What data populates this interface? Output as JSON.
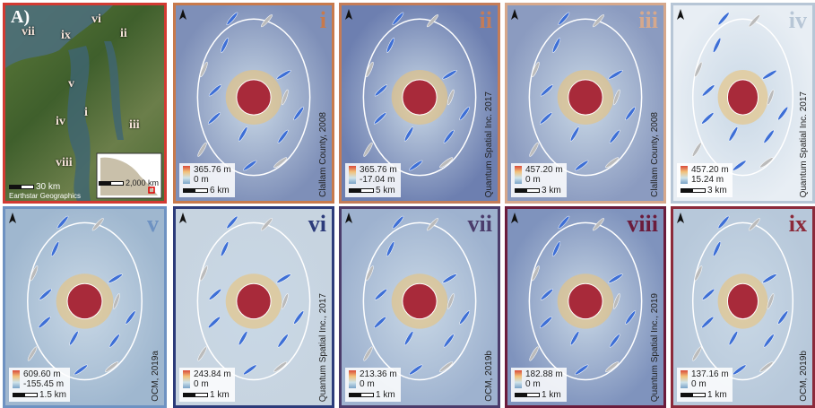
{
  "overview": {
    "label": "A)",
    "site_labels": [
      "vii",
      "ix",
      "vi",
      "ii",
      "v",
      "iv",
      "i",
      "iii",
      "viii"
    ],
    "scale": "30 km",
    "credit": "Earthstar Geographics",
    "inset_scale": "2,000 km"
  },
  "panels": [
    {
      "label": "i",
      "credit": "Clallam County, 2008",
      "legend_max": "365.76 m",
      "legend_min": "0 m",
      "scale": "6 km"
    },
    {
      "label": "ii",
      "credit": "Quantum Spatial Inc. 2017",
      "legend_max": "365.76 m",
      "legend_min": "-17.04 m",
      "scale": "5 km"
    },
    {
      "label": "iii",
      "credit": "Clallam County, 2008",
      "legend_max": "457.20 m",
      "legend_min": "0 m",
      "scale": "3 km"
    },
    {
      "label": "iv",
      "credit": "Quantum Spatial Inc. 2017",
      "legend_max": "457.20 m",
      "legend_min": "15.24 m",
      "scale": "3 km"
    },
    {
      "label": "v",
      "credit": "OCM, 2019a",
      "legend_max": "609.60 m",
      "legend_min": "-155.45 m",
      "scale": "1.5 km"
    },
    {
      "label": "vi",
      "credit": "Quantum Spatial Inc., 2017",
      "legend_max": "243.84 m",
      "legend_min": "0 m",
      "scale": "1 km"
    },
    {
      "label": "vii",
      "credit": "OCM, 2019b",
      "legend_max": "213.36 m",
      "legend_min": "0 m",
      "scale": "1 km"
    },
    {
      "label": "viii",
      "credit": "Quantum Spatial Inc., 2019",
      "legend_max": "182.88 m",
      "legend_min": "0 m",
      "scale": "1 km"
    },
    {
      "label": "ix",
      "credit": "OCM, 2019b",
      "legend_max": "137.16 m",
      "legend_min": "0 m",
      "scale": "1 km"
    }
  ]
}
